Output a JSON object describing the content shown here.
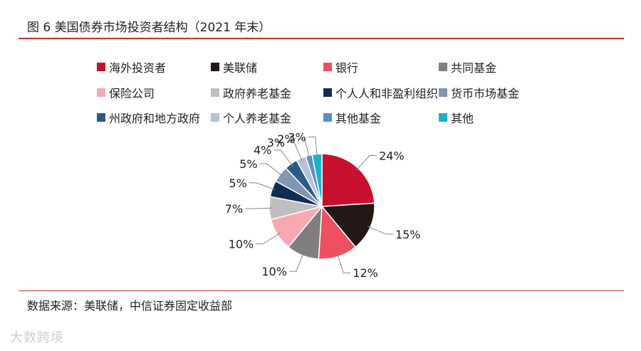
{
  "figure": {
    "title": "图 6  美国债券市场投资者结构（2021 年末）",
    "source": "数据来源：美联储，中信证券固定收益部",
    "watermark": "大数跨境"
  },
  "chart_data": {
    "type": "pie",
    "title": "美国债券市场投资者结构（2021 年末）",
    "unit": "%",
    "legend_position": "top",
    "slices": [
      {
        "label": "海外投资者",
        "value": 24,
        "display": "24%",
        "color": "#c8102e"
      },
      {
        "label": "美联储",
        "value": 15,
        "display": "15%",
        "color": "#231815"
      },
      {
        "label": "银行",
        "value": 12,
        "display": "12%",
        "color": "#ef5061"
      },
      {
        "label": "共同基金",
        "value": 10,
        "display": "10%",
        "color": "#7f7f7f"
      },
      {
        "label": "保险公司",
        "value": 10,
        "display": "10%",
        "color": "#f7a9b2"
      },
      {
        "label": "政府养老基金",
        "value": 7,
        "display": "7%",
        "color": "#bfbfbf"
      },
      {
        "label": "个人人和非盈利组织",
        "value": 5,
        "display": "5%",
        "color": "#0f2d52"
      },
      {
        "label": "货币市场基金",
        "value": 5,
        "display": "5%",
        "color": "#8196b2"
      },
      {
        "label": "州政府和地方政府",
        "value": 4,
        "display": "4%",
        "color": "#2e5a8a"
      },
      {
        "label": "个人养老基金",
        "value": 3,
        "display": "3%",
        "color": "#b4c3d8"
      },
      {
        "label": "其他基金",
        "value": 2,
        "display": "2%",
        "color": "#5b8fc5"
      },
      {
        "label": "其他",
        "value": 3,
        "display": "3%",
        "color": "#1cb3c8"
      }
    ]
  }
}
